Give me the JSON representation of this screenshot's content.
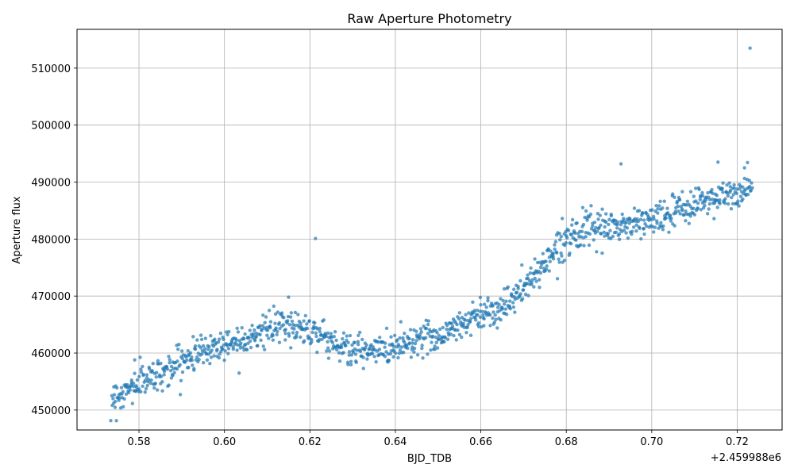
{
  "chart_data": {
    "type": "scatter",
    "title": "Raw Aperture Photometry",
    "xlabel": "BJD_TDB",
    "ylabel": "Aperture flux",
    "x_offset_label": "+2.459988e6",
    "xlim": [
      0.5655,
      0.7305
    ],
    "ylim": [
      446500,
      516800
    ],
    "xticks": [
      0.58,
      0.6,
      0.62,
      0.64,
      0.66,
      0.68,
      0.7,
      0.72
    ],
    "xtick_labels": [
      "0.58",
      "0.60",
      "0.62",
      "0.64",
      "0.66",
      "0.68",
      "0.70",
      "0.72"
    ],
    "yticks": [
      450000,
      460000,
      470000,
      480000,
      490000,
      500000,
      510000
    ],
    "ytick_labels": [
      "450000",
      "460000",
      "470000",
      "480000",
      "490000",
      "500000",
      "510000"
    ],
    "grid": true,
    "point_color": "#1f77b4",
    "trend": [
      [
        0.5735,
        452000
      ],
      [
        0.577,
        453200
      ],
      [
        0.58,
        455000
      ],
      [
        0.583,
        455800
      ],
      [
        0.586,
        456800
      ],
      [
        0.59,
        458500
      ],
      [
        0.594,
        460200
      ],
      [
        0.598,
        461200
      ],
      [
        0.602,
        462000
      ],
      [
        0.606,
        463000
      ],
      [
        0.61,
        464000
      ],
      [
        0.614,
        464800
      ],
      [
        0.618,
        464500
      ],
      [
        0.621,
        464000
      ],
      [
        0.624,
        462500
      ],
      [
        0.627,
        461200
      ],
      [
        0.63,
        460500
      ],
      [
        0.633,
        460200
      ],
      [
        0.636,
        460400
      ],
      [
        0.639,
        461000
      ],
      [
        0.642,
        461800
      ],
      [
        0.645,
        462500
      ],
      [
        0.648,
        462800
      ],
      [
        0.651,
        463200
      ],
      [
        0.654,
        464500
      ],
      [
        0.657,
        465800
      ],
      [
        0.66,
        467000
      ],
      [
        0.663,
        467500
      ],
      [
        0.666,
        468500
      ],
      [
        0.669,
        470500
      ],
      [
        0.672,
        473000
      ],
      [
        0.675,
        476000
      ],
      [
        0.678,
        478500
      ],
      [
        0.681,
        481000
      ],
      [
        0.684,
        481500
      ],
      [
        0.687,
        481500
      ],
      [
        0.69,
        482000
      ],
      [
        0.693,
        482200
      ],
      [
        0.696,
        482800
      ],
      [
        0.699,
        483200
      ],
      [
        0.702,
        483800
      ],
      [
        0.705,
        484500
      ],
      [
        0.708,
        485500
      ],
      [
        0.711,
        486500
      ],
      [
        0.714,
        487200
      ],
      [
        0.717,
        487500
      ],
      [
        0.72,
        487800
      ],
      [
        0.7235,
        489000
      ]
    ],
    "n_points": 1200,
    "scatter_sd": 1400,
    "outliers": [
      {
        "x": 0.723,
        "y": 513500
      },
      {
        "x": 0.6928,
        "y": 493200
      },
      {
        "x": 0.6213,
        "y": 480100
      },
      {
        "x": 0.7155,
        "y": 493500
      },
      {
        "x": 0.7217,
        "y": 492500
      },
      {
        "x": 0.615,
        "y": 469800
      },
      {
        "x": 0.579,
        "y": 458800
      }
    ]
  }
}
